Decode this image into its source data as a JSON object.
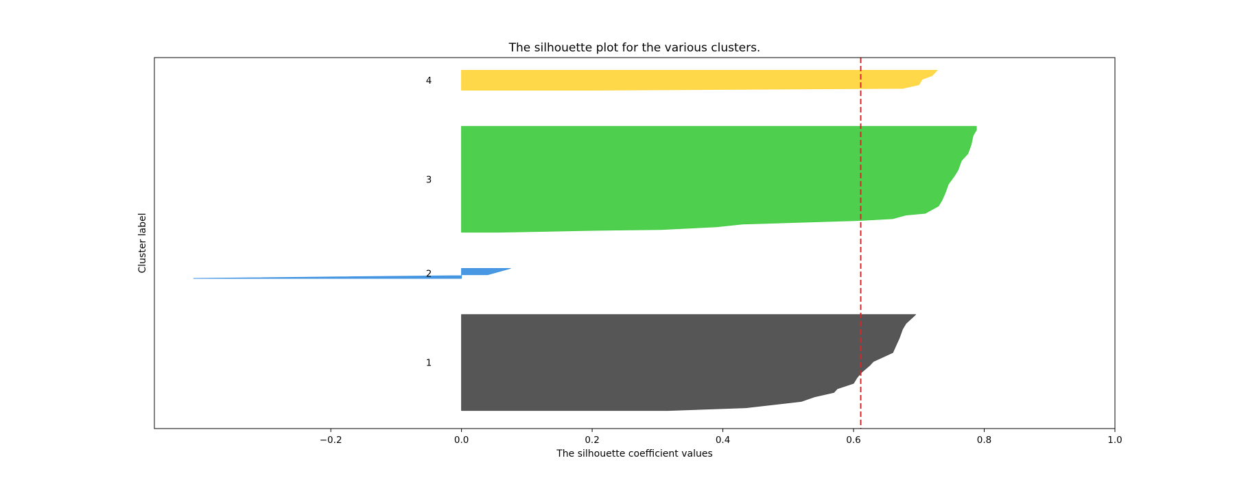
{
  "chart_data": {
    "type": "area",
    "title": "The silhouette plot for the various clusters.",
    "xlabel": "The silhouette coefficient values",
    "ylabel": "Cluster label",
    "xlim": [
      -0.47,
      1.0
    ],
    "ylim": [
      0,
      205
    ],
    "xticks": [
      -0.2,
      0.0,
      0.2,
      0.4,
      0.6,
      0.8,
      1.0
    ],
    "xtick_labels": [
      "−0.2",
      "0.0",
      "0.2",
      "0.4",
      "0.6",
      "0.8",
      "1.0"
    ],
    "yticks": [],
    "grid": false,
    "average_silhouette": 0.611,
    "average_line_color": "#d62728",
    "clusters": [
      {
        "label": "1",
        "color": "#4d4d4d",
        "y_lower": 10,
        "y_upper": 63,
        "profile": [
          [
            0.316,
            10
          ],
          [
            0.435,
            11.5
          ],
          [
            0.52,
            15
          ],
          [
            0.54,
            17.5
          ],
          [
            0.57,
            20
          ],
          [
            0.575,
            22
          ],
          [
            0.6,
            25
          ],
          [
            0.605,
            28
          ],
          [
            0.612,
            31
          ],
          [
            0.625,
            35
          ],
          [
            0.63,
            37
          ],
          [
            0.66,
            42
          ],
          [
            0.665,
            46
          ],
          [
            0.67,
            50
          ],
          [
            0.675,
            55
          ],
          [
            0.68,
            58
          ],
          [
            0.695,
            63
          ]
        ]
      },
      {
        "label": "2",
        "color": "#3d91e0",
        "y_lower": 83,
        "y_upper": 88.5,
        "profile": [
          [
            -0.41,
            83
          ],
          [
            0.0,
            84.5
          ],
          [
            0.0,
            85
          ],
          [
            0.04,
            85
          ],
          [
            0.075,
            88.5
          ]
        ]
      },
      {
        "label": "3",
        "color": "#44cc44",
        "y_lower": 108.5,
        "y_upper": 167,
        "profile": [
          [
            0.055,
            108.5
          ],
          [
            0.2,
            109.5
          ],
          [
            0.305,
            110
          ],
          [
            0.39,
            111.5
          ],
          [
            0.43,
            113
          ],
          [
            0.61,
            115
          ],
          [
            0.66,
            116
          ],
          [
            0.68,
            118
          ],
          [
            0.71,
            119
          ],
          [
            0.72,
            121
          ],
          [
            0.73,
            123
          ],
          [
            0.735,
            126
          ],
          [
            0.74,
            130
          ],
          [
            0.745,
            135
          ],
          [
            0.755,
            140
          ],
          [
            0.76,
            143
          ],
          [
            0.765,
            148
          ],
          [
            0.775,
            152
          ],
          [
            0.78,
            157
          ],
          [
            0.783,
            162
          ],
          [
            0.788,
            165
          ],
          [
            0.788,
            167
          ]
        ]
      },
      {
        "label": "4",
        "color": "#ffd640",
        "y_lower": 187,
        "y_upper": 198,
        "profile": [
          [
            0.2,
            187
          ],
          [
            0.675,
            188
          ],
          [
            0.7,
            190
          ],
          [
            0.705,
            193
          ],
          [
            0.72,
            195
          ],
          [
            0.728,
            198
          ]
        ]
      }
    ]
  }
}
